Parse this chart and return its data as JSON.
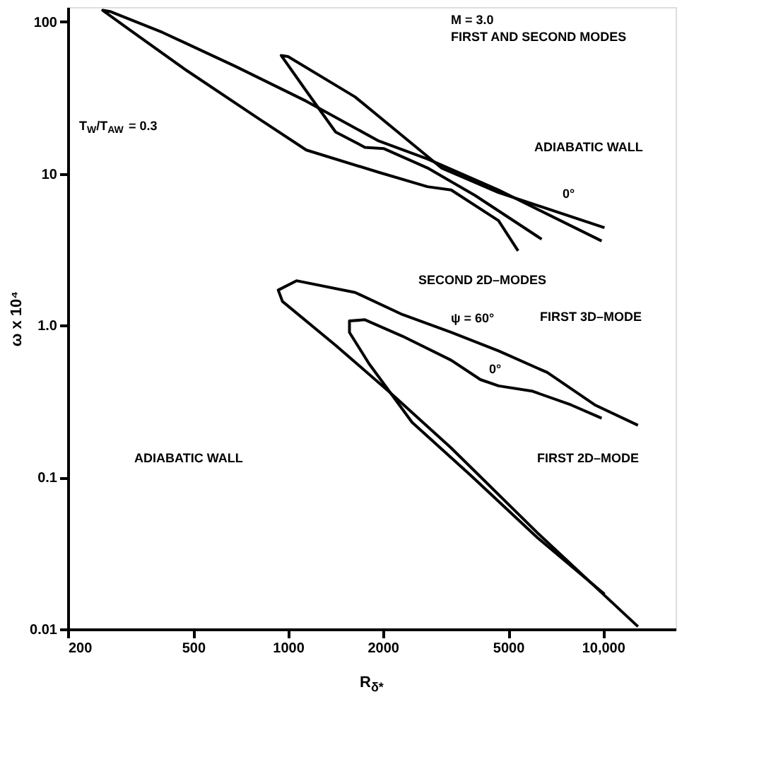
{
  "chart_data": {
    "type": "line",
    "xlabel": "R$_{δ*}$",
    "ylabel": "ω x 10⁴",
    "log": "xy",
    "grid": false,
    "line_style": "solid",
    "xlim": [
      200,
      17000
    ],
    "ylim": [
      0.01,
      125
    ],
    "xticks": [
      200,
      500,
      {
        "value": 1000,
        "label": "1000"
      },
      {
        "value": 2000,
        "label": "2000"
      },
      {
        "value": 5000,
        "label": "5000"
      },
      {
        "value": 10000,
        "label": "10,000"
      }
    ],
    "yticks": [
      0.01,
      0.1,
      {
        "value": 1,
        "label": "1.0"
      },
      10,
      100
    ],
    "series": [
      {
        "color": "#000000",
        "x": [
          5375,
          4659,
          3296,
          2772,
          1941,
          1143,
          807,
          475,
          313,
          258,
          272,
          400,
          679,
          1143,
          1941,
          2772,
          4659,
          9900
        ],
        "values": [
          3.1,
          4.9,
          7.8,
          8.2,
          10.2,
          14.3,
          23,
          48,
          89,
          119,
          117,
          85,
          51,
          30,
          16.4,
          12.5,
          7.8,
          3.6
        ]
      },
      {
        "color": "#000000",
        "x": [
          10110,
          4659,
          3069,
          1633,
          1000,
          951,
          1143,
          1416,
          1754,
          2018,
          2772,
          3917,
          6385
        ],
        "values": [
          4.4,
          7.5,
          10.9,
          32,
          59,
          60,
          35,
          18.8,
          14.9,
          14.6,
          10.9,
          7.2,
          3.7
        ]
      },
      {
        "color": "#000000",
        "x": [
          12910,
          6194,
          3296,
          2083,
          1416,
          960,
          931,
          1064,
          1633,
          2307,
          3296,
          4659,
          6653,
          9410,
          12910
        ],
        "values": [
          0.0104,
          0.043,
          0.156,
          0.37,
          0.74,
          1.44,
          1.71,
          1.97,
          1.65,
          1.18,
          0.9,
          0.68,
          0.49,
          0.3,
          0.22
        ]
      },
      {
        "color": "#000000",
        "x": [
          10110,
          6194,
          3802,
          2477,
          1808,
          1567,
          1567,
          1754,
          2307,
          3296,
          4081,
          4659,
          5943,
          7907,
          9900
        ],
        "values": [
          0.017,
          0.04,
          0.103,
          0.23,
          0.56,
          0.9,
          1.07,
          1.09,
          0.85,
          0.59,
          0.44,
          0.4,
          0.37,
          0.3,
          0.245
        ]
      }
    ],
    "annotations": [
      "M = 3.0",
      "FIRST AND SECOND MODES",
      "T$_{W}$/T$_{AW}$ = 0.3",
      "ADIABATIC WALL",
      "0°",
      "SECOND 2D–MODES",
      "ψ = 60°",
      "FIRST 3D–MODE",
      "0°",
      "FIRST 2D–MODE",
      "ADIABATIC WALL"
    ]
  }
}
